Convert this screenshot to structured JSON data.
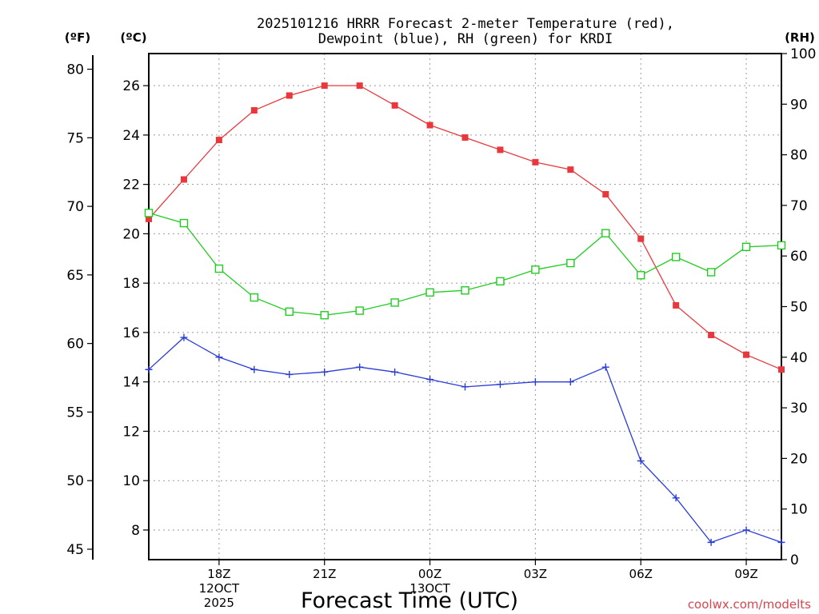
{
  "chart_data": {
    "type": "line",
    "title_line1": "2025101216 HRRR Forecast 2-meter Temperature (red),",
    "title_line2": "Dewpoint (blue), RH (green) for KRDI",
    "xlabel": "Forecast Time (UTC)",
    "watermark": "coolwx.com/modelts",
    "unit_labels": {
      "fahrenheit": "(ºF)",
      "celsius": "(ºC)",
      "rh": "(RH)"
    },
    "x_hours": [
      16,
      17,
      18,
      19,
      20,
      21,
      22,
      23,
      24,
      25,
      26,
      27,
      28,
      29,
      30,
      31,
      32,
      33,
      34
    ],
    "x_ticks": [
      {
        "hour": 18,
        "lines": [
          "18Z",
          "12OCT",
          "2025"
        ]
      },
      {
        "hour": 21,
        "lines": [
          "21Z"
        ]
      },
      {
        "hour": 24,
        "lines": [
          "00Z",
          "13OCT"
        ]
      },
      {
        "hour": 27,
        "lines": [
          "03Z"
        ]
      },
      {
        "hour": 30,
        "lines": [
          "06Z"
        ]
      },
      {
        "hour": 33,
        "lines": [
          "09Z"
        ]
      }
    ],
    "xlim": [
      16,
      34
    ],
    "celsius_axis": {
      "ylim": [
        6.8,
        27.3
      ],
      "ticks": [
        8,
        10,
        12,
        14,
        16,
        18,
        20,
        22,
        24,
        26
      ]
    },
    "fahrenheit_axis": {
      "ticks": [
        45,
        50,
        55,
        60,
        65,
        70,
        75,
        80
      ]
    },
    "rh_axis": {
      "ylim": [
        0,
        100
      ],
      "ticks": [
        0,
        10,
        20,
        30,
        40,
        50,
        60,
        70,
        80,
        90,
        100
      ]
    },
    "series": [
      {
        "name": "2-meter Temperature",
        "color": "#e8383d",
        "axis": "celsius",
        "marker": "filled-square",
        "values": [
          20.6,
          22.2,
          23.8,
          25.0,
          25.6,
          26.0,
          26.0,
          25.2,
          24.4,
          23.9,
          23.4,
          22.9,
          22.6,
          21.6,
          19.8,
          17.1,
          15.9,
          15.1,
          14.5
        ]
      },
      {
        "name": "Dewpoint",
        "color": "#2a3cd6",
        "axis": "celsius",
        "marker": "plus",
        "values": [
          14.5,
          15.8,
          15.0,
          14.5,
          14.3,
          14.4,
          14.6,
          14.4,
          14.1,
          13.8,
          13.9,
          14.0,
          14.0,
          14.6,
          10.8,
          9.3,
          7.5,
          8.0,
          7.5
        ]
      },
      {
        "name": "Relative Humidity",
        "color": "#22cc22",
        "axis": "rh",
        "marker": "open-square",
        "values": [
          68.5,
          66.5,
          57.5,
          51.8,
          49.0,
          48.3,
          49.2,
          50.8,
          52.8,
          53.2,
          55.0,
          57.3,
          58.6,
          64.5,
          56.2,
          59.8,
          56.8,
          61.8,
          62.1
        ]
      }
    ]
  }
}
